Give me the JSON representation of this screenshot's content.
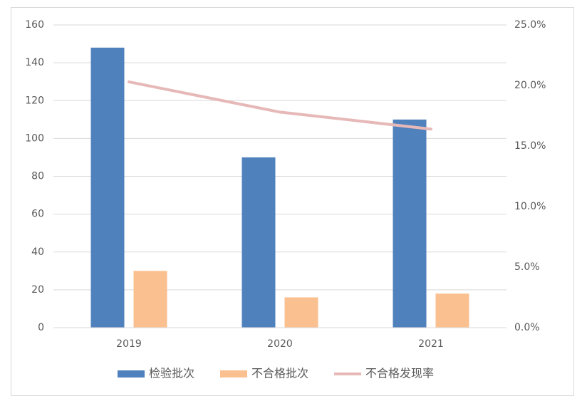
{
  "chart_data": {
    "type": "bar",
    "categories": [
      "2019",
      "2020",
      "2021"
    ],
    "series": [
      {
        "name": "检验批次",
        "type": "bar",
        "color": "#4f81bd",
        "values": [
          148,
          90,
          110
        ]
      },
      {
        "name": "不合格批次",
        "type": "bar",
        "color": "#fac090",
        "values": [
          30,
          16,
          18
        ]
      },
      {
        "name": "不合格发现率",
        "type": "line",
        "axis": "y2",
        "color": "#e6b9b8",
        "values": [
          20.3,
          17.8,
          16.4
        ]
      }
    ],
    "ylim": [
      0,
      160
    ],
    "yticks": [
      0,
      20,
      40,
      60,
      80,
      100,
      120,
      140,
      160
    ],
    "y2lim": [
      0,
      25
    ],
    "y2ticks": [
      {
        "value": 0,
        "label": "0.0%"
      },
      {
        "value": 5,
        "label": "5.0%"
      },
      {
        "value": 10,
        "label": "10.0%"
      },
      {
        "value": 15,
        "label": "15.0%"
      },
      {
        "value": 20,
        "label": "20.0%"
      },
      {
        "value": 25,
        "label": "25.0%"
      }
    ],
    "grid": true,
    "legend": "bottom"
  }
}
